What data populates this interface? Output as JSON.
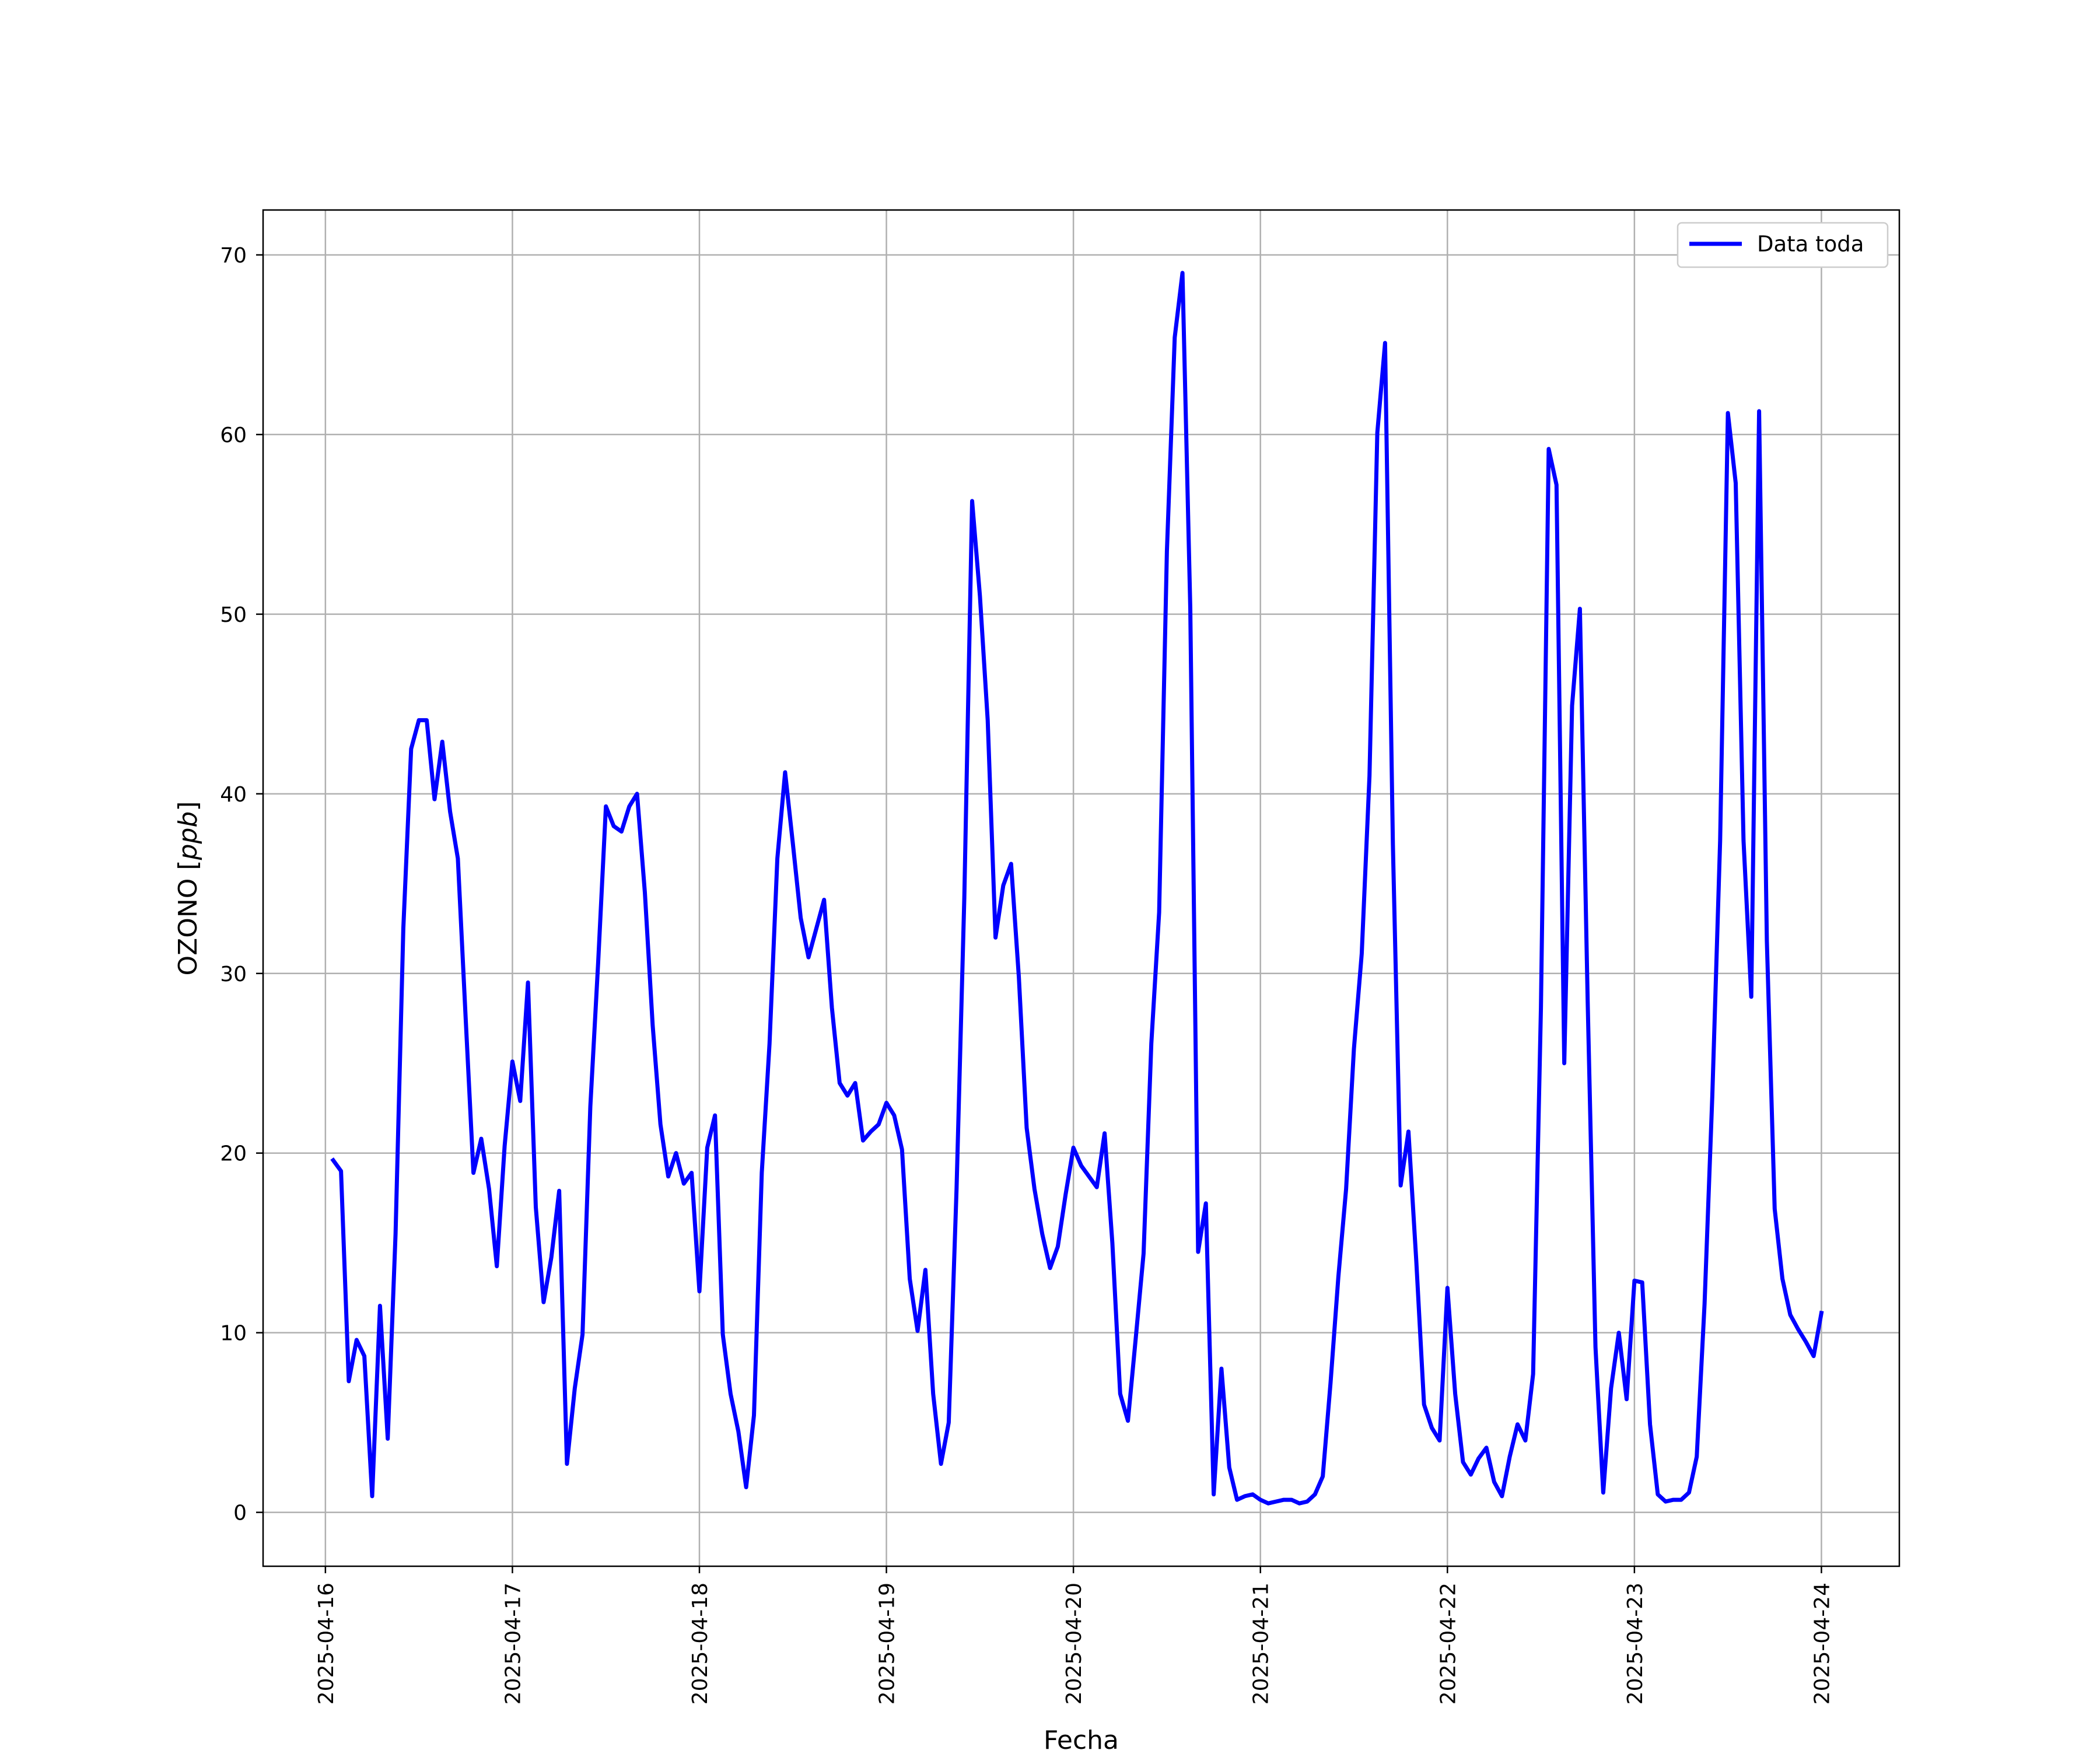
{
  "chart_data": {
    "type": "line",
    "title": "",
    "xlabel": "Fecha",
    "ylabel": {
      "text": "OZONO",
      "unit": "ppb"
    },
    "xlim": [
      "2025-04-15T16:00",
      "2025-04-24T10:00"
    ],
    "ylim": [
      -3,
      72.5
    ],
    "x_ticks": [
      "2025-04-16",
      "2025-04-17",
      "2025-04-18",
      "2025-04-19",
      "2025-04-20",
      "2025-04-21",
      "2025-04-22",
      "2025-04-23",
      "2025-04-24"
    ],
    "y_ticks": [
      0,
      10,
      20,
      30,
      40,
      50,
      60,
      70
    ],
    "grid": true,
    "legend_position": "top-right",
    "series": [
      {
        "name": "Data toda",
        "color": "#0000ff",
        "start": "2025-04-16T01:00",
        "step_hours": 1,
        "end": "2025-04-24T00:00",
        "values": [
          19.6,
          19.0,
          7.3,
          9.6,
          8.7,
          0.9,
          11.5,
          4.1,
          15.5,
          32.5,
          42.5,
          44.1,
          44.1,
          39.7,
          42.9,
          39.0,
          36.4,
          27.5,
          18.9,
          20.8,
          18.0,
          13.7,
          20.4,
          25.1,
          22.9,
          29.5,
          17.0,
          11.7,
          14.2,
          17.9,
          2.7,
          6.9,
          9.9,
          22.6,
          30.6,
          39.3,
          38.2,
          37.9,
          39.3,
          40.0,
          34.5,
          27.1,
          21.6,
          18.7,
          20.0,
          18.3,
          18.9,
          12.3,
          20.3,
          22.1,
          9.9,
          6.6,
          4.5,
          1.4,
          5.4,
          18.9,
          26.1,
          36.4,
          41.2,
          37.2,
          33.1,
          30.9,
          32.5,
          34.1,
          28.1,
          23.9,
          23.2,
          23.9,
          20.7,
          21.2,
          21.6,
          22.8,
          22.1,
          20.2,
          13.0,
          10.1,
          13.5,
          6.6,
          2.7,
          5.0,
          18.0,
          34.2,
          56.3,
          51.0,
          44.1,
          32.0,
          34.9,
          36.1,
          29.8,
          21.4,
          18.0,
          15.5,
          13.6,
          14.8,
          17.7,
          20.3,
          19.3,
          18.7,
          18.1,
          21.1,
          15.0,
          6.6,
          5.1,
          9.7,
          14.4,
          26.1,
          33.4,
          53.5,
          65.4,
          69.0,
          50.3,
          14.5,
          17.2,
          1.0,
          8.0,
          2.5,
          0.7,
          0.9,
          1.0,
          0.7,
          0.5,
          0.6,
          0.7,
          0.7,
          0.5,
          0.6,
          1.0,
          2.0,
          7.2,
          13.1,
          18.0,
          25.8,
          31.1,
          41.0,
          60.1,
          65.1,
          37.2,
          18.2,
          21.2,
          14.0,
          6.0,
          4.7,
          4.0,
          12.5,
          6.6,
          2.8,
          2.1,
          3.0,
          3.6,
          1.7,
          0.9,
          3.1,
          4.9,
          4.0,
          7.7,
          28.1,
          59.2,
          57.2,
          25.0,
          44.9,
          50.3,
          28.5,
          9.2,
          1.1,
          6.9,
          10.0,
          6.3,
          12.9,
          12.8,
          4.9,
          1.0,
          0.6,
          0.7,
          0.7,
          1.1,
          3.1,
          11.6,
          23.2,
          37.4,
          61.2,
          57.3,
          37.4,
          28.7,
          61.3,
          31.8,
          16.9,
          13.0,
          11.0,
          10.2,
          9.5,
          8.7,
          11.1
        ]
      }
    ]
  }
}
